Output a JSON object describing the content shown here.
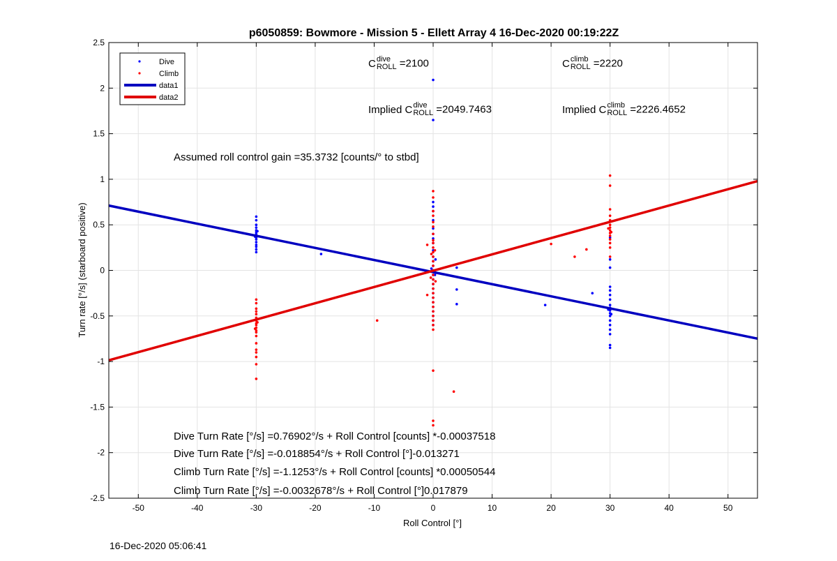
{
  "chart_data": {
    "type": "scatter",
    "title": "p6050859: Bowmore - Mission 5 - Ellett Array 4 16-Dec-2020 00:19:22Z",
    "xlabel": "Roll Control [°]",
    "ylabel": "Turn rate [°/s] (starboard positive)",
    "xlim": [
      -55,
      55
    ],
    "ylim": [
      -2.5,
      2.5
    ],
    "xticks": [
      -50,
      -40,
      -30,
      -20,
      -10,
      0,
      10,
      20,
      30,
      40,
      50
    ],
    "yticks": [
      -2.5,
      -2,
      -1.5,
      -1,
      -0.5,
      0,
      0.5,
      1,
      1.5,
      2,
      2.5
    ],
    "grid": true,
    "legend_position": "top-left",
    "series": [
      {
        "name": "Dive",
        "kind": "points",
        "color": "#0000ff",
        "points": [
          [
            -30,
            0.59
          ],
          [
            -30,
            0.55
          ],
          [
            -30,
            0.5
          ],
          [
            -30,
            0.47
          ],
          [
            -30,
            0.44
          ],
          [
            -30,
            0.42
          ],
          [
            -30,
            0.4
          ],
          [
            -30,
            0.38
          ],
          [
            -30,
            0.36
          ],
          [
            -30,
            0.34
          ],
          [
            -30,
            0.31
          ],
          [
            -30,
            0.28
          ],
          [
            -30,
            0.26
          ],
          [
            -30,
            0.23
          ],
          [
            -30,
            0.2
          ],
          [
            -29.8,
            0.43
          ],
          [
            -30.2,
            0.37
          ],
          [
            -19,
            0.18
          ],
          [
            0,
            2.09
          ],
          [
            0,
            1.65
          ],
          [
            0,
            0.75
          ],
          [
            0,
            0.7
          ],
          [
            0,
            0.65
          ],
          [
            0,
            0.55
          ],
          [
            0,
            0.46
          ],
          [
            0,
            0.4
          ],
          [
            0,
            0.35
          ],
          [
            0,
            0.3
          ],
          [
            0,
            0.22
          ],
          [
            0,
            0.15
          ],
          [
            0,
            0.1
          ],
          [
            0,
            0.05
          ],
          [
            0,
            0.0
          ],
          [
            0,
            -0.05
          ],
          [
            0,
            -0.1
          ],
          [
            0,
            -0.15
          ],
          [
            0,
            -0.2
          ],
          [
            0,
            -0.25
          ],
          [
            0,
            -0.3
          ],
          [
            0,
            -0.35
          ],
          [
            0,
            -0.4
          ],
          [
            0,
            -0.45
          ],
          [
            0,
            -0.5
          ],
          [
            0,
            -0.55
          ],
          [
            0,
            -0.6
          ],
          [
            0.3,
            -0.05
          ],
          [
            -0.3,
            0.02
          ],
          [
            0.4,
            0.12
          ],
          [
            4,
            0.03
          ],
          [
            4,
            -0.21
          ],
          [
            4,
            -0.37
          ],
          [
            19,
            -0.38
          ],
          [
            27,
            -0.25
          ],
          [
            30,
            0.36
          ],
          [
            30,
            0.12
          ],
          [
            30,
            0.03
          ],
          [
            30,
            -0.18
          ],
          [
            30,
            -0.22
          ],
          [
            30,
            -0.27
          ],
          [
            30,
            -0.32
          ],
          [
            30,
            -0.38
          ],
          [
            30,
            -0.41
          ],
          [
            30,
            -0.44
          ],
          [
            30,
            -0.47
          ],
          [
            30,
            -0.5
          ],
          [
            30,
            -0.55
          ],
          [
            30,
            -0.6
          ],
          [
            30,
            -0.65
          ],
          [
            30,
            -0.7
          ],
          [
            30,
            -0.82
          ],
          [
            30,
            -0.85
          ],
          [
            29.7,
            -0.43
          ],
          [
            30.2,
            -0.48
          ]
        ]
      },
      {
        "name": "Climb",
        "kind": "points",
        "color": "#ff0000",
        "points": [
          [
            -30,
            -0.32
          ],
          [
            -30,
            -0.36
          ],
          [
            -30,
            -0.42
          ],
          [
            -30,
            -0.45
          ],
          [
            -30,
            -0.48
          ],
          [
            -30,
            -0.52
          ],
          [
            -30,
            -0.55
          ],
          [
            -30,
            -0.58
          ],
          [
            -30,
            -0.6
          ],
          [
            -30,
            -0.63
          ],
          [
            -30,
            -0.66
          ],
          [
            -30,
            -0.68
          ],
          [
            -30,
            -0.72
          ],
          [
            -30,
            -0.8
          ],
          [
            -30,
            -0.87
          ],
          [
            -30,
            -0.9
          ],
          [
            -30,
            -0.95
          ],
          [
            -30,
            -1.03
          ],
          [
            -30,
            -1.19
          ],
          [
            -29.8,
            -0.57
          ],
          [
            -30.2,
            -0.64
          ],
          [
            -9.5,
            -0.55
          ],
          [
            0,
            0.87
          ],
          [
            0,
            0.8
          ],
          [
            0,
            0.65
          ],
          [
            0,
            0.6
          ],
          [
            0,
            0.53
          ],
          [
            0,
            0.48
          ],
          [
            0,
            0.4
          ],
          [
            0,
            0.33
          ],
          [
            0,
            0.3
          ],
          [
            0,
            0.25
          ],
          [
            0,
            0.2
          ],
          [
            0,
            0.15
          ],
          [
            0,
            0.1
          ],
          [
            0,
            0.05
          ],
          [
            0,
            0.0
          ],
          [
            0,
            -0.05
          ],
          [
            0,
            -0.1
          ],
          [
            0,
            -0.15
          ],
          [
            0,
            -0.2
          ],
          [
            0,
            -0.25
          ],
          [
            0,
            -0.3
          ],
          [
            0,
            -0.35
          ],
          [
            0,
            -0.4
          ],
          [
            0,
            -0.45
          ],
          [
            0,
            -0.5
          ],
          [
            0,
            -0.55
          ],
          [
            0,
            -0.6
          ],
          [
            0,
            -0.65
          ],
          [
            0,
            -1.1
          ],
          [
            0,
            -1.65
          ],
          [
            0,
            -1.7
          ],
          [
            0.3,
            0.22
          ],
          [
            -0.3,
            0.18
          ],
          [
            0.4,
            -0.12
          ],
          [
            -0.4,
            -0.08
          ],
          [
            -1,
            0.28
          ],
          [
            -1,
            -0.27
          ],
          [
            3.5,
            -1.33
          ],
          [
            20,
            0.29
          ],
          [
            24,
            0.15
          ],
          [
            26,
            0.23
          ],
          [
            30,
            1.04
          ],
          [
            30,
            0.93
          ],
          [
            30,
            0.67
          ],
          [
            30,
            0.6
          ],
          [
            30,
            0.55
          ],
          [
            30,
            0.5
          ],
          [
            30,
            0.47
          ],
          [
            30,
            0.44
          ],
          [
            30,
            0.41
          ],
          [
            30,
            0.38
          ],
          [
            30,
            0.34
          ],
          [
            30,
            0.3
          ],
          [
            30,
            0.25
          ],
          [
            30,
            0.15
          ],
          [
            29.7,
            0.46
          ],
          [
            30.2,
            0.42
          ]
        ]
      },
      {
        "name": "data1",
        "kind": "line",
        "color": "#0000c0",
        "slope": -0.013271,
        "intercept": -0.018854
      },
      {
        "name": "data2",
        "kind": "line",
        "color": "#e00000",
        "slope": 0.017879,
        "intercept": -0.0032678
      }
    ],
    "annotations": {
      "c_roll_dive": {
        "base": "C",
        "sup": "dive",
        "sub": "ROLL",
        "value": "=2100"
      },
      "c_roll_climb": {
        "base": "C",
        "sup": "climb",
        "sub": "ROLL",
        "value": "=2220"
      },
      "implied_dive": {
        "prefix": "Implied C",
        "sup": "dive",
        "sub": "ROLL",
        "value": "=2049.7463"
      },
      "implied_climb": {
        "prefix": "Implied C",
        "sup": "climb",
        "sub": "ROLL",
        "value": "=2226.4652"
      },
      "gain": "Assumed roll control gain =35.3732 [counts/° to stbd]",
      "eq1": "Dive Turn Rate [°/s] =0.76902°/s + Roll Control [counts] *-0.00037518",
      "eq2": "Dive Turn Rate [°/s] =-0.018854°/s + Roll Control [°]-0.013271",
      "eq3": "Climb Turn Rate [°/s] =-1.1253°/s + Roll Control [counts] *0.00050544",
      "eq4": "Climb Turn Rate [°/s] =-0.0032678°/s + Roll Control [°]0.017879"
    }
  },
  "footer": {
    "timestamp": "16-Dec-2020 05:06:41"
  }
}
